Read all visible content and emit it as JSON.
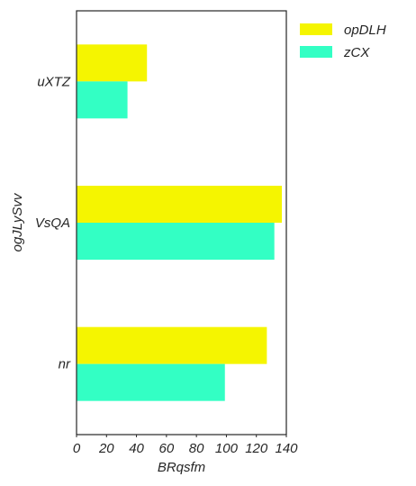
{
  "chart_data": {
    "type": "bar",
    "orientation": "horizontal",
    "categories": [
      "uXTZ",
      "VsQA",
      "nr"
    ],
    "series": [
      {
        "name": "opDLH",
        "values": [
          47,
          137,
          127
        ],
        "color": "#f5f500"
      },
      {
        "name": "zCX",
        "values": [
          34,
          132,
          99
        ],
        "color": "#33ffc4"
      }
    ],
    "xlabel": "BRqsfm",
    "ylabel": "ogJLySvv",
    "xlim": [
      0,
      140
    ],
    "xticks": [
      0,
      20,
      40,
      60,
      80,
      100,
      120,
      140
    ],
    "grid": false,
    "legend_position": "outside-top-right"
  }
}
